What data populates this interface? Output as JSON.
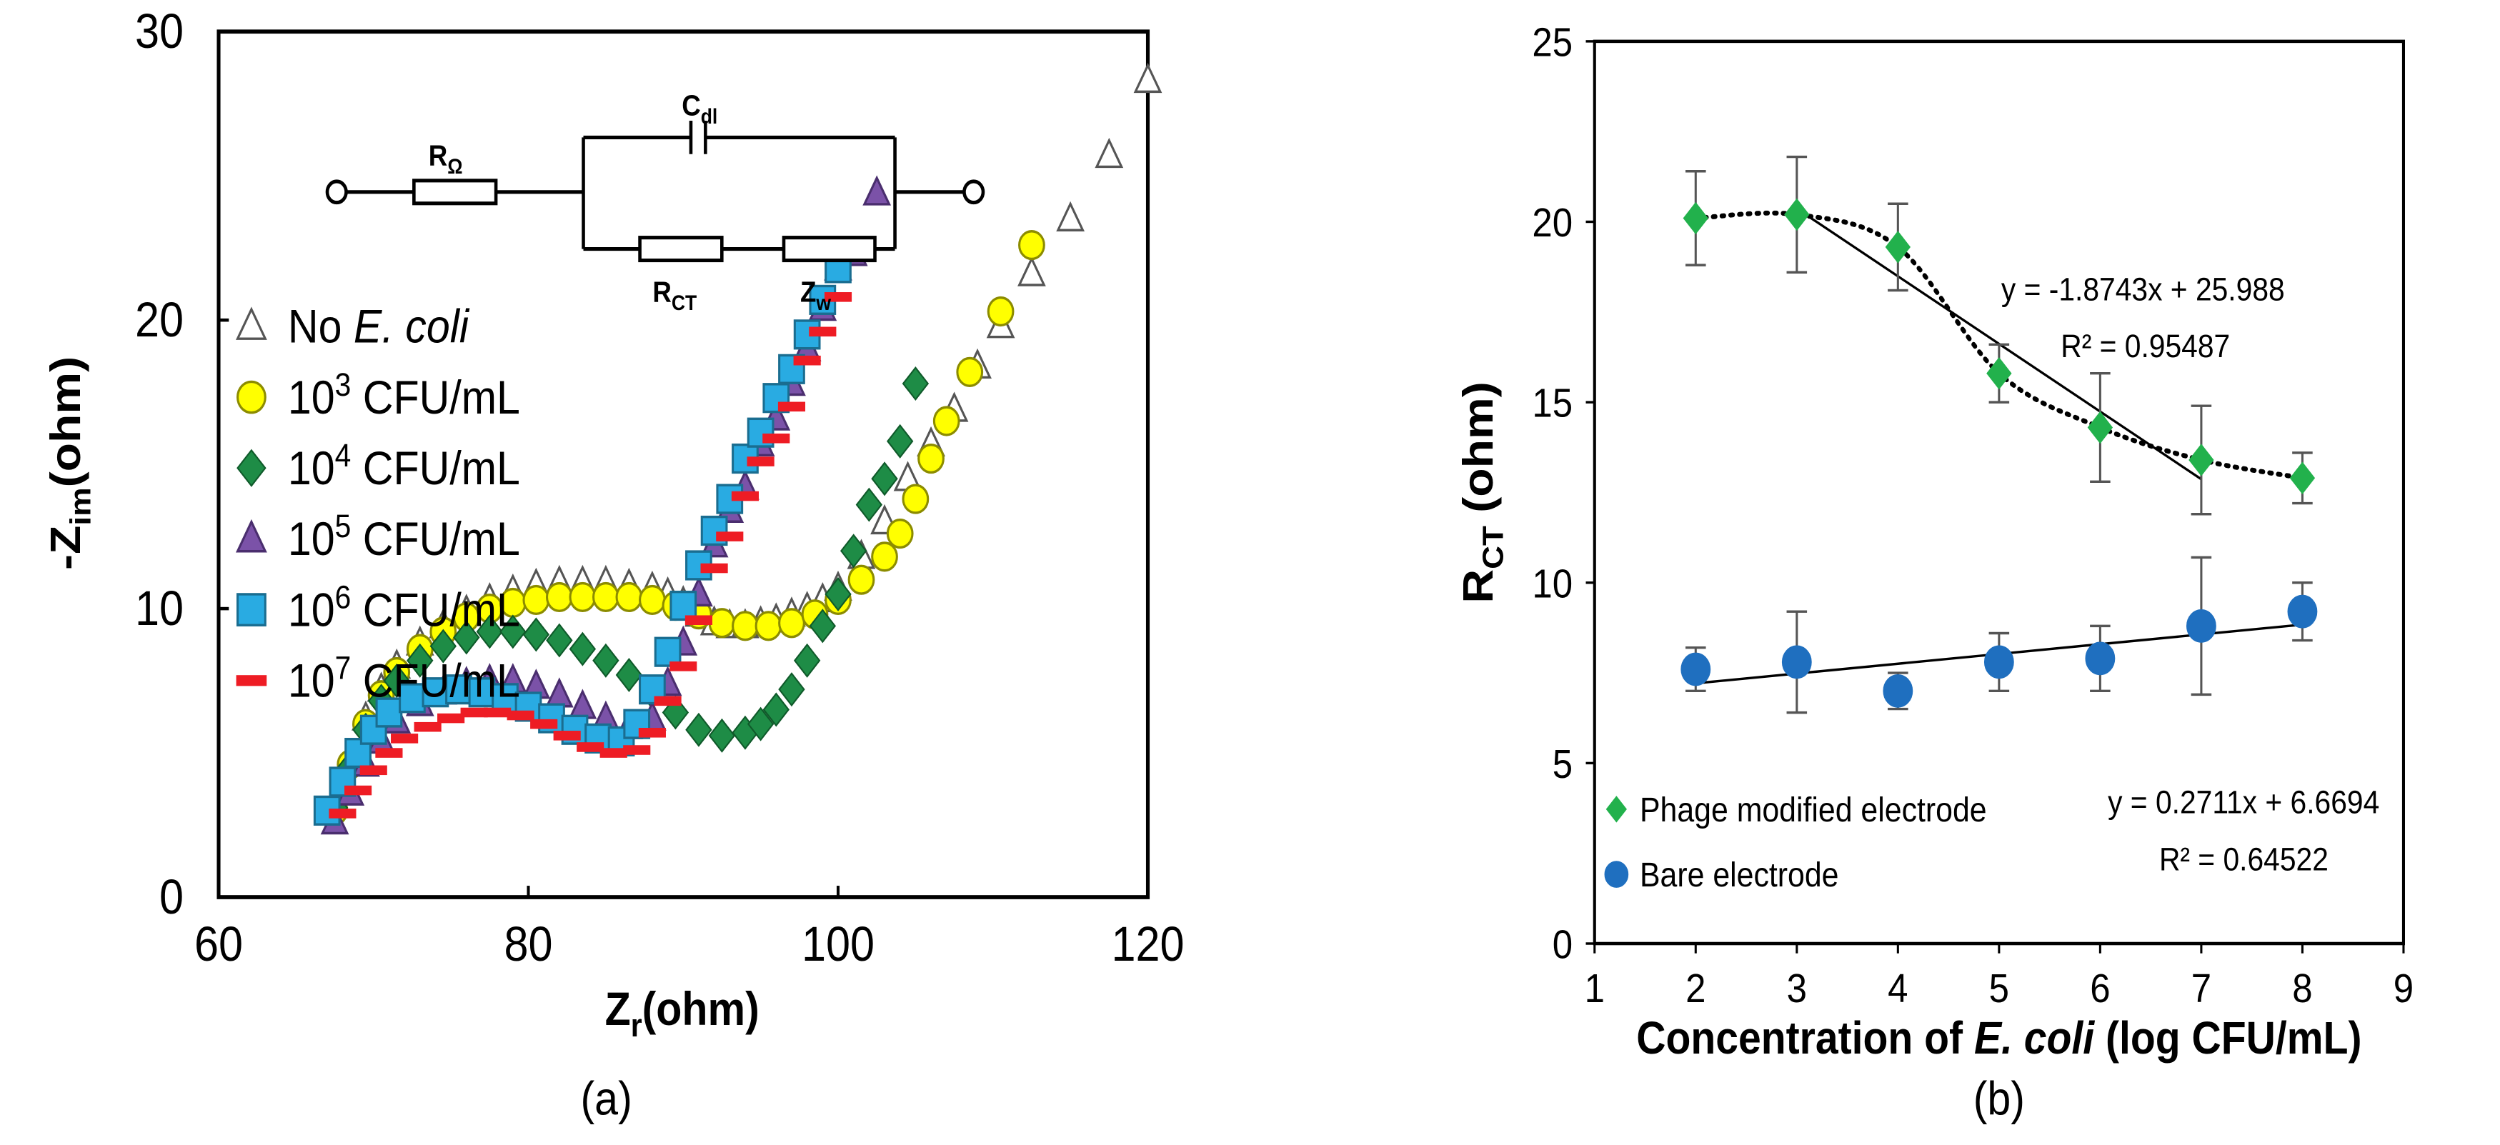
{
  "chart_data": [
    {
      "panel_label": "(a)",
      "type": "scatter",
      "title": "",
      "xlabel": {
        "main": "Z",
        "sub": "r",
        "rest": "(ohm)"
      },
      "ylabel": {
        "main": "-Z",
        "sub": "im",
        "rest": "(ohm)"
      },
      "xlim": [
        60,
        120
      ],
      "ylim": [
        0,
        30
      ],
      "xticks": [
        "60",
        "80",
        "100",
        "120"
      ],
      "yticks": [
        "0",
        "10",
        "20",
        "30"
      ],
      "grid": false,
      "legend_position": "left",
      "circuit": {
        "r_ohm": {
          "main": "R",
          "sub": "Ω"
        },
        "c_dl": {
          "main": "C",
          "sub": "dl"
        },
        "r_ct": {
          "main": "R",
          "sub": "CT"
        },
        "z_w": {
          "main": "Z",
          "sub": "w"
        }
      },
      "series": [
        {
          "name": "No E. coli",
          "label_pre": "No ",
          "label_italic": "E. coli",
          "label_exp": "",
          "label_post": "",
          "marker": "triangle-open",
          "color": "#ffffff",
          "edge": "#555555",
          "x": [
            67.5,
            68.5,
            69.5,
            70.5,
            71.5,
            73,
            74.5,
            76,
            77.5,
            79,
            80.5,
            82,
            83.5,
            85,
            86.5,
            88,
            89,
            90,
            91,
            92,
            93,
            94,
            95,
            96,
            97,
            98,
            99,
            100,
            101.5,
            103,
            104.5,
            106,
            107.5,
            109,
            110.5,
            112.5,
            115,
            117.5,
            120
          ],
          "y": [
            3.2,
            4.8,
            6.2,
            7.2,
            8.0,
            8.8,
            9.4,
            9.9,
            10.3,
            10.6,
            10.8,
            10.9,
            10.9,
            10.9,
            10.8,
            10.7,
            10.5,
            10.2,
            9.8,
            9.5,
            9.4,
            9.4,
            9.5,
            9.6,
            9.8,
            10.0,
            10.3,
            10.7,
            11.8,
            13.0,
            14.5,
            15.7,
            16.9,
            18.4,
            19.8,
            21.6,
            23.5,
            25.7,
            28.3
          ]
        },
        {
          "name": "10^3 CFU/mL",
          "label_pre": "10",
          "label_italic": "",
          "label_exp": "3",
          "label_post": " CFU/mL",
          "marker": "circle",
          "color": "#ffff00",
          "edge": "#8c8c00",
          "x": [
            67.5,
            68.5,
            69.5,
            70.5,
            71.5,
            73,
            74.5,
            76,
            77.5,
            79,
            80.5,
            82,
            83.5,
            85,
            86.5,
            88,
            89.5,
            91,
            92.5,
            94,
            95.5,
            97,
            98.5,
            100,
            101.5,
            103,
            104,
            105,
            106,
            107,
            108.5,
            110.5,
            112.5
          ],
          "y": [
            3.0,
            4.6,
            6.0,
            7.0,
            7.8,
            8.6,
            9.2,
            9.7,
            10.0,
            10.2,
            10.3,
            10.4,
            10.4,
            10.4,
            10.4,
            10.3,
            10.1,
            9.8,
            9.5,
            9.4,
            9.4,
            9.5,
            9.8,
            10.3,
            11.0,
            11.8,
            12.6,
            13.8,
            15.2,
            16.5,
            18.2,
            20.3,
            22.6
          ]
        },
        {
          "name": "10^4 CFU/mL",
          "label_pre": "10",
          "label_italic": "",
          "label_exp": "4",
          "label_post": " CFU/mL",
          "marker": "diamond",
          "color": "#1e8c46",
          "edge": "#0f5a2a",
          "x": [
            67.5,
            68.5,
            69.5,
            70.5,
            71.5,
            73,
            74.5,
            76,
            77.5,
            79,
            80.5,
            82,
            83.5,
            85,
            86.5,
            88,
            89.5,
            91,
            92.5,
            94,
            95,
            96,
            97,
            98,
            99,
            100,
            101,
            102,
            103,
            104,
            105
          ],
          "y": [
            3.1,
            4.5,
            5.8,
            6.8,
            7.5,
            8.2,
            8.7,
            9.0,
            9.2,
            9.2,
            9.1,
            8.9,
            8.6,
            8.2,
            7.7,
            7.1,
            6.4,
            5.8,
            5.6,
            5.7,
            6.0,
            6.5,
            7.2,
            8.2,
            9.4,
            10.5,
            12.0,
            13.6,
            14.5,
            15.8,
            17.8
          ]
        },
        {
          "name": "10^5 CFU/mL",
          "label_pre": "10",
          "label_italic": "",
          "label_exp": "5",
          "label_post": " CFU/mL",
          "marker": "triangle",
          "color": "#7b52a8",
          "edge": "#4a2e6e",
          "x": [
            67.5,
            68.5,
            69.5,
            70.5,
            71.5,
            73,
            74.5,
            76,
            77.5,
            79,
            80.5,
            82,
            83.5,
            85,
            86.5,
            88,
            89,
            90,
            91,
            92,
            93,
            94,
            95,
            96,
            97,
            98,
            99,
            100,
            101,
            102.5
          ],
          "y": [
            2.6,
            3.6,
            4.6,
            5.4,
            6.1,
            6.7,
            7.1,
            7.4,
            7.5,
            7.5,
            7.3,
            7.0,
            6.6,
            6.2,
            5.9,
            6.2,
            7.4,
            8.8,
            10.5,
            12.2,
            13.4,
            14.2,
            15.7,
            16.6,
            17.8,
            19.0,
            20.4,
            21.8,
            22.3,
            24.4
          ]
        },
        {
          "name": "10^6 CFU/mL",
          "label_pre": "10",
          "label_italic": "",
          "label_exp": "6",
          "label_post": " CFU/mL",
          "marker": "square",
          "color": "#29abe2",
          "edge": "#1a6d90",
          "x": [
            67,
            68,
            69,
            70,
            71,
            72.5,
            74,
            75.5,
            77,
            78.5,
            80,
            81.5,
            83,
            84.5,
            86,
            87,
            88,
            89,
            90,
            91,
            92,
            93,
            94,
            95,
            96,
            97,
            98,
            99,
            100
          ],
          "y": [
            3.0,
            4.0,
            5.0,
            5.8,
            6.4,
            6.9,
            7.1,
            7.2,
            7.1,
            6.9,
            6.6,
            6.2,
            5.8,
            5.5,
            5.4,
            6.0,
            7.2,
            8.5,
            10.1,
            11.5,
            12.7,
            13.8,
            15.2,
            16.1,
            17.3,
            18.3,
            19.5,
            20.7,
            21.8
          ]
        },
        {
          "name": "10^7 CFU/mL",
          "label_pre": "10",
          "label_italic": "",
          "label_exp": "7",
          "label_post": " CFU/mL",
          "marker": "dash",
          "color": "#ee1c24",
          "edge": "#ee1c24",
          "x": [
            68,
            69,
            70,
            71,
            72,
            73.5,
            75,
            76.5,
            78,
            79.5,
            81,
            82.5,
            84,
            85.5,
            87,
            88,
            89,
            90,
            91,
            92,
            93,
            94,
            95,
            96,
            97,
            98,
            99,
            100,
            101
          ],
          "y": [
            2.9,
            3.7,
            4.4,
            5.0,
            5.5,
            5.9,
            6.2,
            6.4,
            6.4,
            6.3,
            6.0,
            5.6,
            5.2,
            5.0,
            5.1,
            5.7,
            6.8,
            8.0,
            9.6,
            11.4,
            12.5,
            13.9,
            15.1,
            15.9,
            17.0,
            18.6,
            19.6,
            20.8,
            22.2
          ]
        }
      ]
    },
    {
      "panel_label": "(b)",
      "type": "scatter",
      "title": "",
      "xlabel": {
        "pre": "Concentration of ",
        "italic": "E. coli",
        "post": "  (log CFU/mL)"
      },
      "ylabel": {
        "main": "R",
        "sub": "CT",
        "rest": " (ohm)"
      },
      "xlim": [
        1,
        9
      ],
      "ylim": [
        0,
        25
      ],
      "xticks": [
        "1",
        "2",
        "3",
        "4",
        "5",
        "6",
        "7",
        "8",
        "9"
      ],
      "yticks": [
        "0",
        "5",
        "10",
        "15",
        "20",
        "25"
      ],
      "grid": false,
      "legend_position": "bottom-left",
      "series": [
        {
          "name": "Phage modified electrode",
          "marker": "diamond",
          "color": "#22b14c",
          "x": [
            2,
            3,
            4,
            5,
            6,
            7,
            8
          ],
          "y": [
            20.1,
            20.2,
            19.3,
            15.8,
            14.3,
            13.4,
            12.9
          ],
          "err": [
            1.3,
            1.6,
            1.2,
            0.8,
            1.5,
            1.5,
            0.7
          ],
          "fit": {
            "x_range": [
              3,
              7
            ],
            "slope": -1.8743,
            "intercept": 25.988
          },
          "equation": "y = -1.8743x + 25.988",
          "r2": "R² = 0.95487"
        },
        {
          "name": "Bare electrode",
          "marker": "circle",
          "color": "#1f6fbf",
          "x": [
            2,
            3,
            4,
            5,
            6,
            7,
            8
          ],
          "y": [
            7.6,
            7.8,
            7.0,
            7.8,
            7.9,
            8.8,
            9.2
          ],
          "err": [
            0.6,
            1.4,
            0.5,
            0.8,
            0.9,
            1.9,
            0.8
          ],
          "fit": {
            "x_range": [
              2,
              8
            ],
            "slope": 0.2711,
            "intercept": 6.6694
          },
          "equation": "y = 0.2711x + 6.6694",
          "r2": "R² = 0.64522"
        }
      ]
    }
  ]
}
